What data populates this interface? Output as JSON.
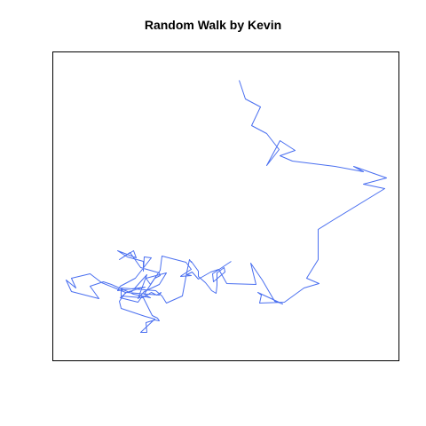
{
  "chart_data": {
    "type": "line",
    "title": "Random Walk by Kevin",
    "xlabel": "",
    "ylabel": "",
    "axes_visible": false,
    "grid": false,
    "legend": "none",
    "xlim": [
      0,
      390
    ],
    "ylim": [
      0,
      348
    ],
    "series": [
      {
        "color": "#4a6ff0",
        "x": [
          210,
          217,
          234,
          224,
          241,
          255,
          241,
          256,
          273,
          256,
          270,
          318,
          350,
          339,
          376,
          350,
          374,
          315,
          299,
          299,
          286,
          300,
          283,
          261,
          233,
          235,
          231,
          259,
          250,
          236,
          223,
          229,
          196,
          187,
          178,
          164,
          157,
          151,
          156,
          144,
          145,
          156,
          150,
          123,
          121,
          110,
          105,
          128,
          120,
          103,
          96,
          106,
          89,
          86,
          104,
          73,
          76,
          93,
          111,
          103,
          102,
          102,
          84,
          73,
          94,
          91,
          75,
          87,
          99,
          120,
          121,
          115,
          103,
          110,
          91,
          66,
          57,
          42,
          52,
          21,
          15,
          26,
          21,
          42,
          55,
          82,
          75,
          77,
          104,
          115,
          99,
          106,
          105,
          115,
          120,
          118,
          112,
          101,
          96,
          76,
          83,
          120,
          122,
          117,
          111,
          101,
          77,
          77,
          116,
          123,
          128,
          146,
          151,
          154,
          156,
          156,
          164,
          164,
          172,
          176,
          179,
          184,
          185,
          185,
          193,
          194,
          181,
          180,
          201
        ],
        "y": [
          316,
          295,
          286,
          265,
          256,
          238,
          220,
          248,
          237,
          231,
          225,
          219,
          213,
          219,
          206,
          199,
          194,
          158,
          148,
          114,
          93,
          87,
          82,
          66,
          65,
          74,
          77,
          64,
          67,
          91,
          110,
          86,
          87,
          103,
          100,
          92,
          100,
          97,
          96,
          95,
          96,
          103,
          111,
          118,
          102,
          86,
          93,
          99,
          86,
          78,
          70,
          97,
          78,
          78,
          83,
          79,
          84,
          93,
          116,
          117,
          101,
          112,
          117,
          124,
          116,
          124,
          114,
          122,
          105,
          99,
          96,
          93,
          75,
          71,
          75,
          86,
          89,
          84,
          70,
          78,
          91,
          82,
          93,
          98,
          88,
          77,
          67,
          59,
          50,
          47,
          32,
          32,
          43,
          46,
          45,
          48,
          51,
          73,
          66,
          71,
          77,
          74,
          77,
          74,
          77,
          71,
          73,
          82,
          79,
          73,
          65,
          73,
          100,
          114,
          111,
          112,
          101,
          95,
          88,
          83,
          79,
          76,
          85,
          99,
          105,
          100,
          89,
          98,
          112
        ]
      }
    ]
  }
}
